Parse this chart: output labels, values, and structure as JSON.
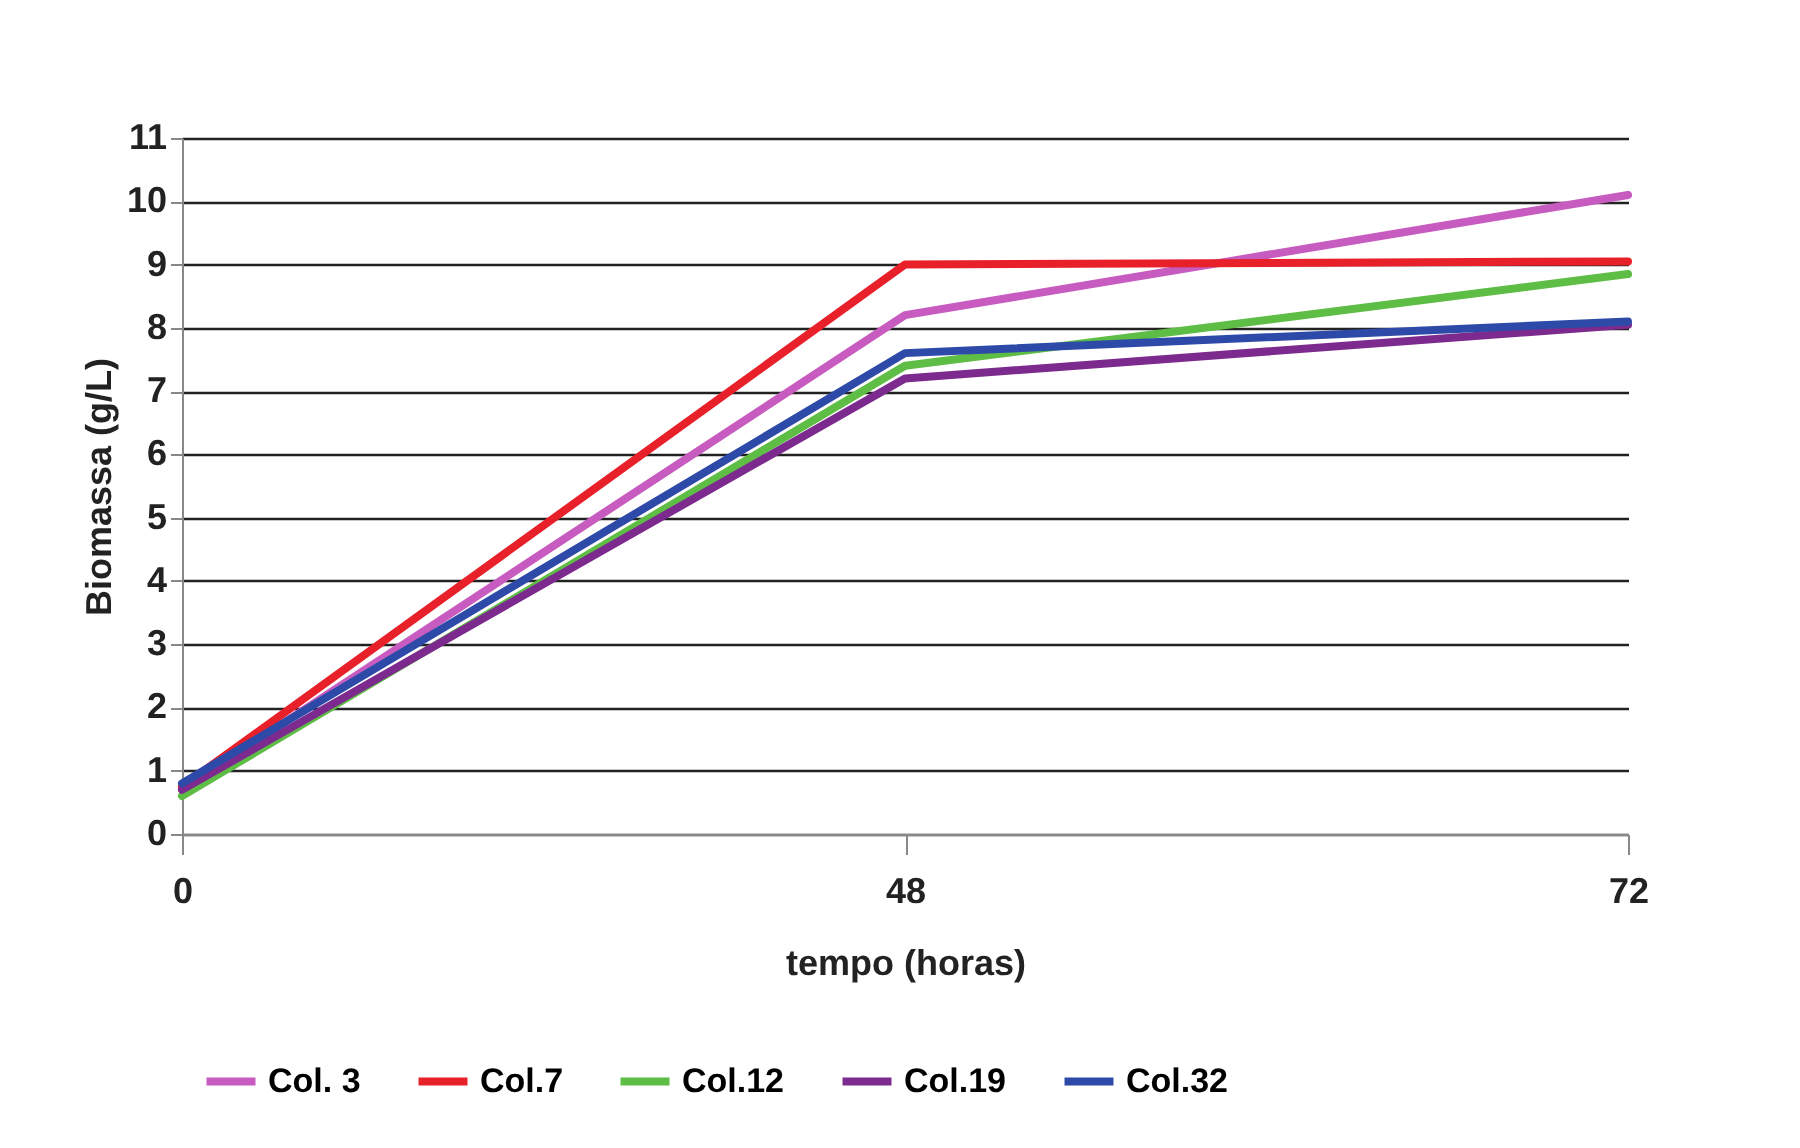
{
  "chart_data": {
    "type": "line",
    "xlabel": "tempo (horas)",
    "ylabel": "Biomassa (g/L)",
    "categories": [
      "0",
      "48",
      "72"
    ],
    "series": [
      {
        "name": "Col. 3",
        "color": "#c75bc0",
        "values": [
          0.7,
          8.2,
          10.1
        ]
      },
      {
        "name": "Col.7",
        "color": "#e8202a",
        "values": [
          0.75,
          9.0,
          9.05
        ]
      },
      {
        "name": "Col.12",
        "color": "#5dbd45",
        "values": [
          0.6,
          7.4,
          8.85
        ]
      },
      {
        "name": "Col.19",
        "color": "#7d2a8f",
        "values": [
          0.7,
          7.2,
          8.05
        ]
      },
      {
        "name": "Col.32",
        "color": "#2e4aa8",
        "values": [
          0.8,
          7.6,
          8.1
        ]
      }
    ],
    "ylim": [
      0,
      11
    ],
    "yticks": [
      0,
      1,
      2,
      3,
      4,
      5,
      6,
      7,
      8,
      9,
      10,
      11
    ],
    "grid": "y",
    "legend": "bottom",
    "marker": "none",
    "line_style": "solid"
  }
}
